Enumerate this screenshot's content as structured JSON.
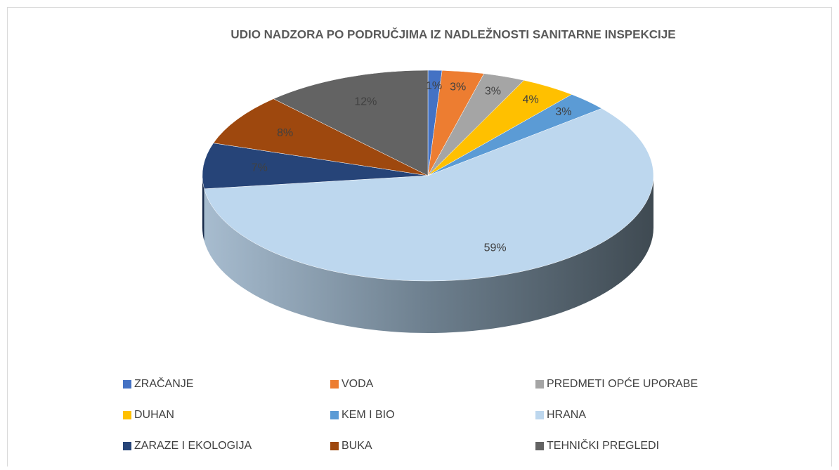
{
  "chart_data": {
    "type": "pie",
    "title": "UDIO NADZORA PO PODRUČJIMA IZ NADLEŽNOSTI SANITARNE INSPEKCIJE",
    "categories": [
      "ZRAČANJE",
      "VODA",
      "PREDMETI OPĆE UPORABE",
      "DUHAN",
      "KEM I BIO",
      "HRANA",
      "ZARAZE I EKOLOGIJA",
      "BUKA",
      "TEHNIČKI PREGLEDI"
    ],
    "values": [
      1,
      3,
      3,
      4,
      3,
      59,
      7,
      8,
      12
    ],
    "value_labels": [
      "1%",
      "3%",
      "3%",
      "4%",
      "3%",
      "59%",
      "7%",
      "8%",
      "12%"
    ],
    "colors": [
      "#4472c4",
      "#ed7d31",
      "#a5a5a5",
      "#ffc000",
      "#5b9bd5",
      "#bdd7ee",
      "#264478",
      "#9e480e",
      "#636363"
    ],
    "legend": "bottom"
  }
}
